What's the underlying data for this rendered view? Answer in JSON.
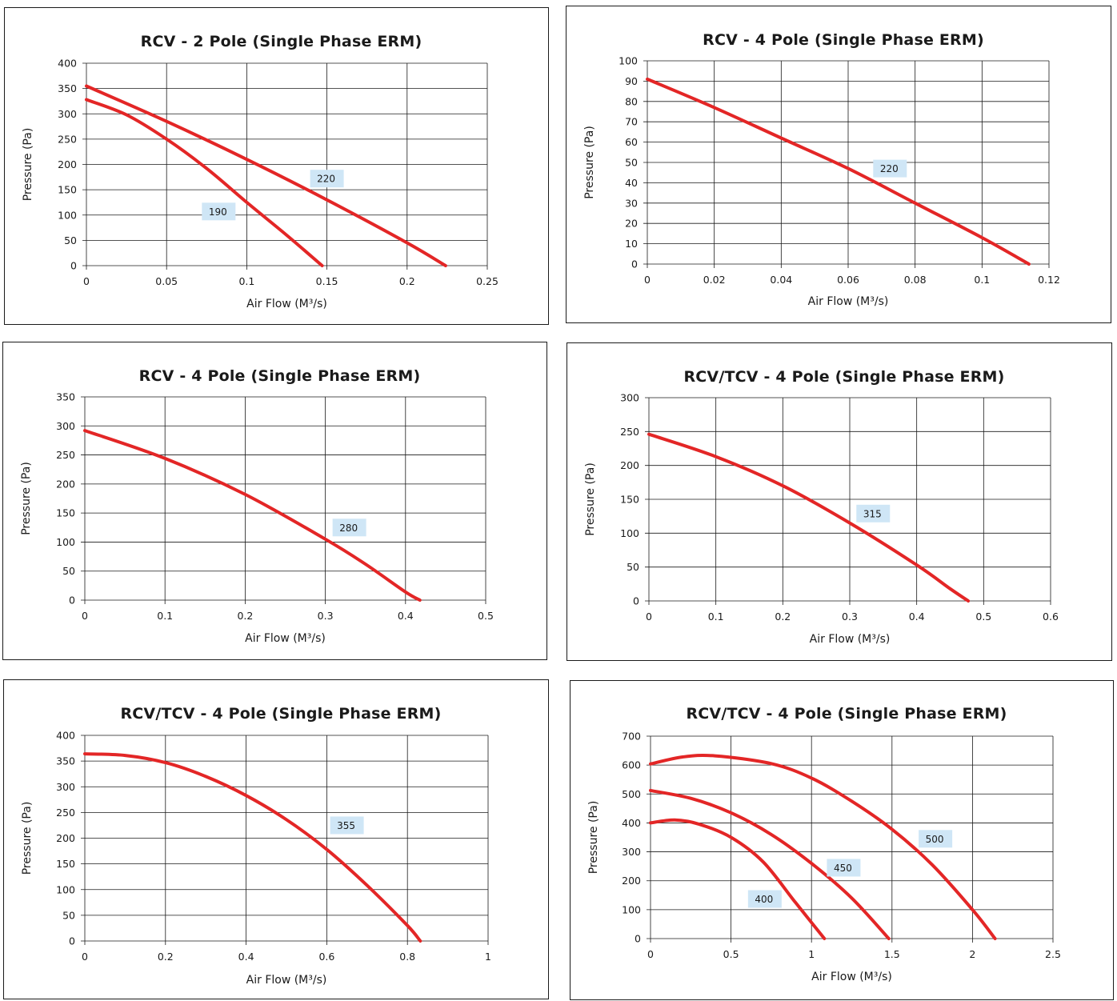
{
  "colors": {
    "curve": "#e32626",
    "label_bg": "#cfe6f6",
    "grid": "#1a1a1a"
  },
  "chart_data": [
    {
      "type": "line",
      "title": "RCV - 2 Pole (Single Phase ERM)",
      "xlabel": "Air Flow (M³/s)",
      "ylabel": "Pressure (Pa)",
      "xlim": [
        0,
        0.25
      ],
      "ylim": [
        0,
        400
      ],
      "xticks": [
        "0",
        "0.05",
        "0.1",
        "0.15",
        "0.2",
        "0.25"
      ],
      "yticks": [
        "0",
        "50",
        "100",
        "150",
        "200",
        "250",
        "300",
        "350",
        "400"
      ],
      "grid": true,
      "series": [
        {
          "name": "190",
          "label_at": [
            0.0825,
            107
          ],
          "points": [
            [
              0,
              328
            ],
            [
              0.025,
              298
            ],
            [
              0.05,
              250
            ],
            [
              0.075,
              192
            ],
            [
              0.1,
              125
            ],
            [
              0.125,
              60
            ],
            [
              0.147,
              0
            ]
          ]
        },
        {
          "name": "220",
          "label_at": [
            0.15,
            172
          ],
          "points": [
            [
              0,
              355
            ],
            [
              0.05,
              285
            ],
            [
              0.1,
              210
            ],
            [
              0.15,
              130
            ],
            [
              0.2,
              45
            ],
            [
              0.224,
              0
            ]
          ]
        }
      ]
    },
    {
      "type": "line",
      "title": "RCV - 4 Pole (Single Phase ERM)",
      "xlabel": "Air Flow (M³/s)",
      "ylabel": "Pressure (Pa)",
      "xlim": [
        0,
        0.12
      ],
      "ylim": [
        0,
        100
      ],
      "xticks": [
        "0",
        "0.02",
        "0.04",
        "0.06",
        "0.08",
        "0.1",
        "0.12"
      ],
      "yticks": [
        "0",
        "10",
        "20",
        "30",
        "40",
        "50",
        "60",
        "70",
        "80",
        "90",
        "100"
      ],
      "grid": true,
      "series": [
        {
          "name": "220",
          "label_at": [
            0.0725,
            47
          ],
          "points": [
            [
              0,
              91
            ],
            [
              0.02,
              77
            ],
            [
              0.04,
              62
            ],
            [
              0.06,
              47
            ],
            [
              0.08,
              30
            ],
            [
              0.1,
              13
            ],
            [
              0.114,
              0
            ]
          ]
        }
      ]
    },
    {
      "type": "line",
      "title": "RCV - 4 Pole (Single Phase ERM)",
      "xlabel": "Air Flow (M³/s)",
      "ylabel": "Pressure (Pa)",
      "xlim": [
        0,
        0.5
      ],
      "ylim": [
        0,
        350
      ],
      "xticks": [
        "0",
        "0.1",
        "0.2",
        "0.3",
        "0.4",
        "0.5"
      ],
      "yticks": [
        "0",
        "50",
        "100",
        "150",
        "200",
        "250",
        "300",
        "350"
      ],
      "grid": true,
      "series": [
        {
          "name": "280",
          "label_at": [
            0.33,
            125
          ],
          "points": [
            [
              0,
              292
            ],
            [
              0.1,
              244
            ],
            [
              0.2,
              182
            ],
            [
              0.3,
              105
            ],
            [
              0.35,
              62
            ],
            [
              0.4,
              14
            ],
            [
              0.418,
              0
            ]
          ]
        }
      ]
    },
    {
      "type": "line",
      "title": "RCV/TCV - 4 Pole (Single Phase ERM)",
      "xlabel": "Air Flow (M³/s)",
      "ylabel": "Pressure (Pa)",
      "xlim": [
        0,
        0.6
      ],
      "ylim": [
        0,
        300
      ],
      "xticks": [
        "0",
        "0.1",
        "0.2",
        "0.3",
        "0.4",
        "0.5",
        "0.6"
      ],
      "yticks": [
        "0",
        "50",
        "100",
        "150",
        "200",
        "250",
        "300"
      ],
      "grid": true,
      "series": [
        {
          "name": "315",
          "label_at": [
            0.335,
            129
          ],
          "points": [
            [
              0,
              246
            ],
            [
              0.1,
              213
            ],
            [
              0.2,
              170
            ],
            [
              0.3,
              115
            ],
            [
              0.4,
              53
            ],
            [
              0.45,
              18
            ],
            [
              0.477,
              0
            ]
          ]
        }
      ]
    },
    {
      "type": "line",
      "title": "RCV/TCV - 4 Pole (Single Phase ERM)",
      "xlabel": "Air Flow (M³/s)",
      "ylabel": "Pressure (Pa)",
      "xlim": [
        0,
        1
      ],
      "ylim": [
        0,
        400
      ],
      "xticks": [
        "0",
        "0.2",
        "0.4",
        "0.6",
        "0.8",
        "1"
      ],
      "yticks": [
        "0",
        "50",
        "100",
        "150",
        "200",
        "250",
        "300",
        "350",
        "400"
      ],
      "grid": true,
      "series": [
        {
          "name": "355",
          "label_at": [
            0.65,
            225
          ],
          "points": [
            [
              0,
              364
            ],
            [
              0.1,
              361
            ],
            [
              0.2,
              347
            ],
            [
              0.3,
              320
            ],
            [
              0.4,
              283
            ],
            [
              0.5,
              236
            ],
            [
              0.6,
              178
            ],
            [
              0.7,
              108
            ],
            [
              0.8,
              30
            ],
            [
              0.832,
              0
            ]
          ]
        }
      ]
    },
    {
      "type": "line",
      "title": "RCV/TCV - 4 Pole (Single Phase ERM)",
      "xlabel": "Air Flow (M³/s)",
      "ylabel": "Pressure (Pa)",
      "xlim": [
        0,
        2.5
      ],
      "ylim": [
        0,
        700
      ],
      "xticks": [
        "0",
        "0.5",
        "1",
        "1.5",
        "2",
        "2.5"
      ],
      "yticks": [
        "0",
        "100",
        "200",
        "300",
        "400",
        "500",
        "600",
        "700"
      ],
      "grid": true,
      "series": [
        {
          "name": "400",
          "label_at": [
            0.71,
            137
          ],
          "points": [
            [
              0,
              400
            ],
            [
              0.15,
              410
            ],
            [
              0.3,
              396
            ],
            [
              0.5,
              350
            ],
            [
              0.7,
              265
            ],
            [
              0.9,
              125
            ],
            [
              1.08,
              0
            ]
          ]
        },
        {
          "name": "450",
          "label_at": [
            1.2,
            245
          ],
          "points": [
            [
              0,
              512
            ],
            [
              0.25,
              485
            ],
            [
              0.5,
              435
            ],
            [
              0.75,
              360
            ],
            [
              1.0,
              260
            ],
            [
              1.25,
              140
            ],
            [
              1.48,
              0
            ]
          ]
        },
        {
          "name": "500",
          "label_at": [
            1.77,
            345
          ],
          "points": [
            [
              0,
              604
            ],
            [
              0.2,
              628
            ],
            [
              0.4,
              632
            ],
            [
              0.75,
              605
            ],
            [
              1.0,
              555
            ],
            [
              1.25,
              475
            ],
            [
              1.5,
              378
            ],
            [
              1.75,
              255
            ],
            [
              2.0,
              100
            ],
            [
              2.14,
              0
            ]
          ]
        }
      ]
    }
  ]
}
